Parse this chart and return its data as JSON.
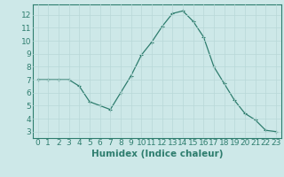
{
  "x": [
    0,
    1,
    2,
    3,
    4,
    5,
    6,
    7,
    8,
    9,
    10,
    11,
    12,
    13,
    14,
    15,
    16,
    17,
    18,
    19,
    20,
    21,
    22,
    23
  ],
  "y": [
    7.0,
    7.0,
    7.0,
    7.0,
    6.5,
    5.3,
    5.0,
    4.7,
    6.0,
    7.3,
    8.9,
    9.9,
    11.1,
    12.1,
    12.3,
    11.5,
    10.3,
    8.0,
    6.7,
    5.4,
    4.4,
    3.9,
    3.1,
    3.0
  ],
  "xlabel": "Humidex (Indice chaleur)",
  "xlim": [
    -0.5,
    23.5
  ],
  "ylim": [
    2.5,
    12.8
  ],
  "xticks": [
    0,
    1,
    2,
    3,
    4,
    5,
    6,
    7,
    8,
    9,
    10,
    11,
    12,
    13,
    14,
    15,
    16,
    17,
    18,
    19,
    20,
    21,
    22,
    23
  ],
  "yticks": [
    3,
    4,
    5,
    6,
    7,
    8,
    9,
    10,
    11,
    12
  ],
  "line_color": "#2e7d6e",
  "marker": "+",
  "bg_color": "#cde8e8",
  "grid_color": "#b8d8d8",
  "axis_label_fontsize": 7.5,
  "tick_fontsize": 6.5
}
